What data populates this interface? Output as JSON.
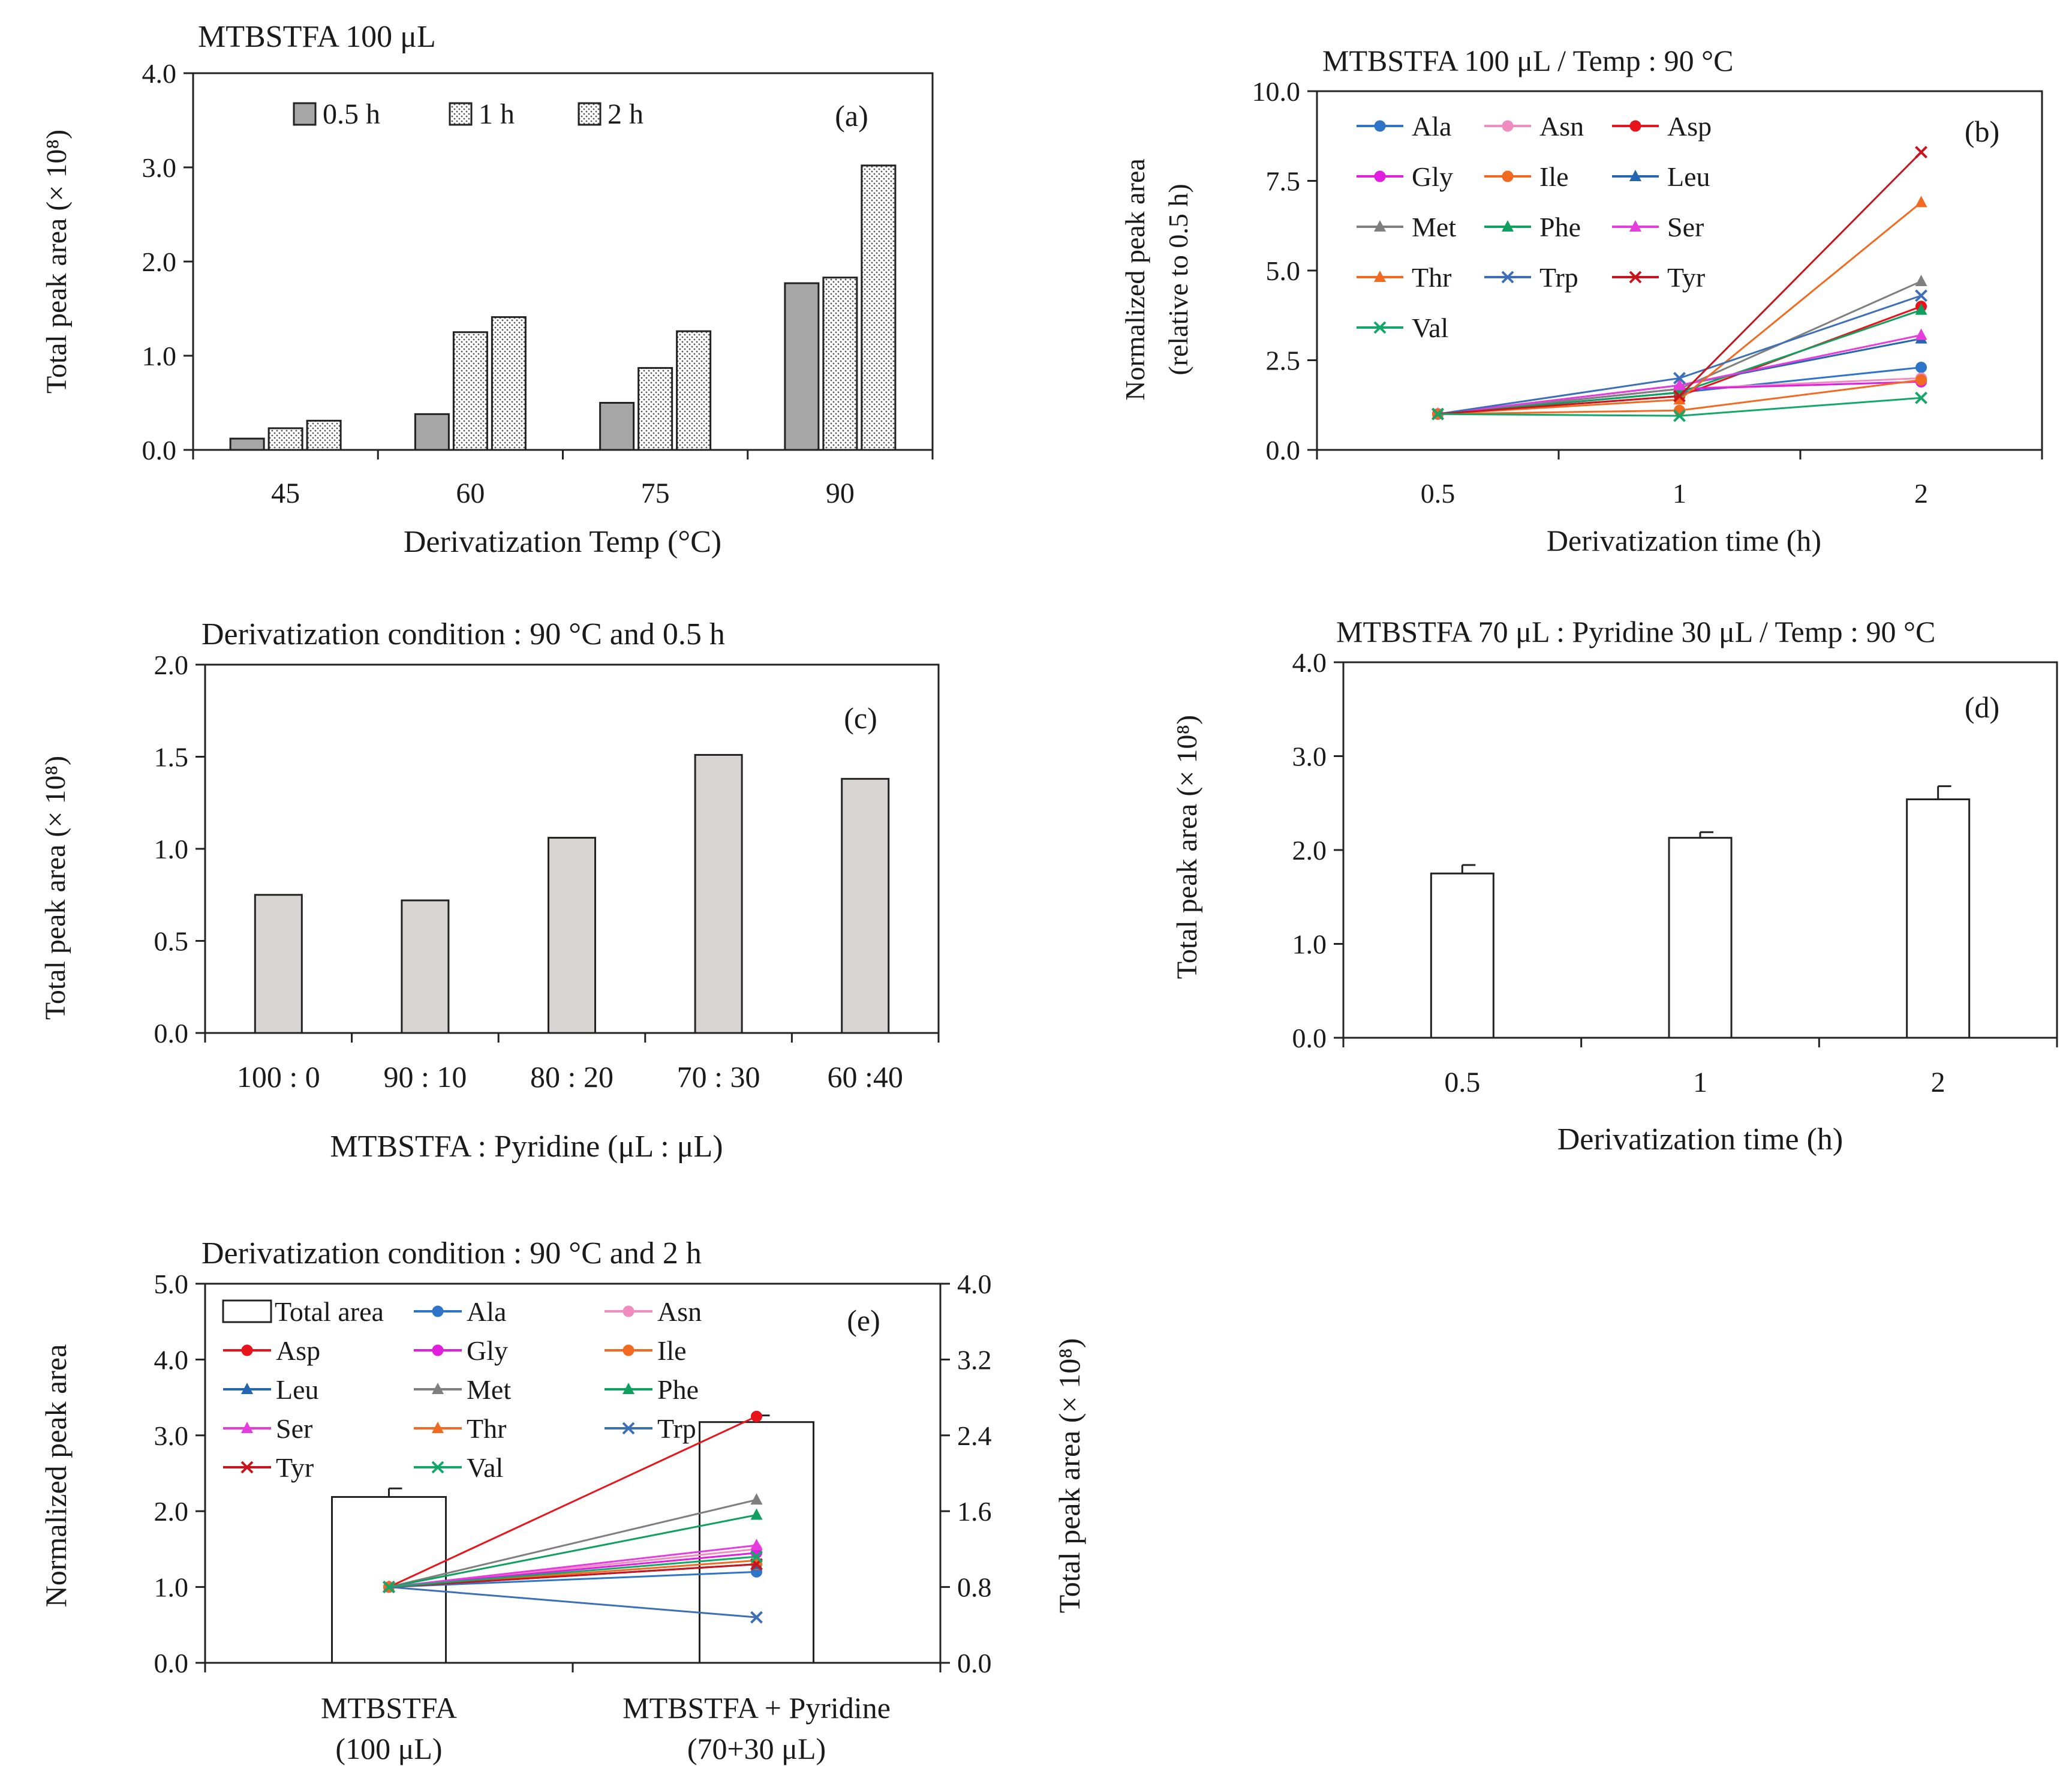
{
  "colors": {
    "gray_bar": "#a6a6a6",
    "light_bar": "#d9d4d4",
    "Ala": "#2e75c9",
    "Asn": "#f08cc0",
    "Asp": "#e8141c",
    "Gly": "#e01ee0",
    "Ile": "#f26a22",
    "Leu": "#2566b0",
    "Met": "#7f7f7f",
    "Phe": "#0fa060",
    "Ser": "#e63cdc",
    "Thr": "#f26a22",
    "Trp": "#3d6fb6",
    "Tyr": "#c8141c",
    "Val": "#13a86a"
  },
  "chart_data": [
    {
      "id": "a",
      "type": "bar",
      "panel_label": "(a)",
      "title": "MTBSTFA 100 μL",
      "xlabel": "Derivatization Temp (°C)",
      "ylabel": "Total peak area (× 10⁸)",
      "ylim": [
        0,
        4
      ],
      "yticks": [
        "0.0",
        "1.0",
        "2.0",
        "3.0",
        "4.0"
      ],
      "categories": [
        "45",
        "60",
        "75",
        "90"
      ],
      "series": [
        {
          "name": "0.5 h",
          "pattern": "solid-gray",
          "values": [
            0.12,
            0.38,
            0.5,
            1.77
          ]
        },
        {
          "name": "1 h",
          "pattern": "dotted",
          "values": [
            0.23,
            1.25,
            0.87,
            1.83
          ]
        },
        {
          "name": "2 h",
          "pattern": "dotted",
          "values": [
            0.31,
            1.41,
            1.26,
            3.02
          ]
        }
      ],
      "legend": "top-left"
    },
    {
      "id": "b",
      "type": "line",
      "panel_label": "(b)",
      "title": "MTBSTFA 100 μL / Temp : 90 °C",
      "xlabel": "Derivatization time (h)",
      "ylabel": "Normalized peak area",
      "ylabel2": "(relative to 0.5 h)",
      "ylim": [
        0,
        10
      ],
      "yticks": [
        "0.0",
        "2.5",
        "5.0",
        "7.5",
        "10.0"
      ],
      "categories": [
        "0.5",
        "1",
        "2"
      ],
      "series": [
        {
          "name": "Ala",
          "marker": "circle",
          "values": [
            1,
            1.6,
            2.3
          ]
        },
        {
          "name": "Asn",
          "marker": "circle",
          "values": [
            1,
            1.7,
            2.0
          ]
        },
        {
          "name": "Asp",
          "marker": "circle",
          "values": [
            1,
            1.5,
            4.0
          ]
        },
        {
          "name": "Gly",
          "marker": "circle",
          "values": [
            1,
            1.7,
            1.9
          ]
        },
        {
          "name": "Ile",
          "marker": "circle",
          "values": [
            1,
            1.1,
            1.95
          ]
        },
        {
          "name": "Leu",
          "marker": "triangle",
          "values": [
            1,
            1.8,
            3.1
          ]
        },
        {
          "name": "Met",
          "marker": "triangle",
          "values": [
            1,
            1.7,
            4.7
          ]
        },
        {
          "name": "Phe",
          "marker": "triangle",
          "values": [
            1,
            1.6,
            3.9
          ]
        },
        {
          "name": "Ser",
          "marker": "triangle",
          "values": [
            1,
            1.8,
            3.2
          ]
        },
        {
          "name": "Thr",
          "marker": "triangle",
          "values": [
            1,
            1.4,
            6.9
          ]
        },
        {
          "name": "Trp",
          "marker": "x",
          "values": [
            1,
            2.0,
            4.3
          ]
        },
        {
          "name": "Tyr",
          "marker": "x",
          "values": [
            1,
            1.5,
            8.3
          ]
        },
        {
          "name": "Val",
          "marker": "x",
          "values": [
            1,
            0.95,
            1.45
          ]
        }
      ],
      "legend": "top-left"
    },
    {
      "id": "c",
      "type": "bar",
      "panel_label": "(c)",
      "title": "Derivatization condition : 90 °C and 0.5 h",
      "xlabel": "MTBSTFA : Pyridine (μL : μL)",
      "ylabel": "Total peak area (× 10⁸)",
      "ylim": [
        0,
        2
      ],
      "yticks": [
        "0.0",
        "0.5",
        "1.0",
        "1.5",
        "2.0"
      ],
      "categories": [
        "100 : 0",
        "90 : 10",
        "80 : 20",
        "70 : 30",
        "60 :40"
      ],
      "values": [
        0.75,
        0.72,
        1.06,
        1.51,
        1.38
      ]
    },
    {
      "id": "d",
      "type": "bar",
      "panel_label": "(d)",
      "title": "MTBSTFA 70 μL : Pyridine 30 μL / Temp : 90 °C",
      "xlabel": "Derivatization time (h)",
      "ylabel": "Total peak area (× 10⁸)",
      "ylim": [
        0,
        4
      ],
      "yticks": [
        "0.0",
        "1.0",
        "2.0",
        "3.0",
        "4.0"
      ],
      "categories": [
        "0.5",
        "1",
        "2"
      ],
      "values": [
        1.75,
        2.13,
        2.54
      ],
      "errors": [
        0.09,
        0.06,
        0.14
      ]
    },
    {
      "id": "e",
      "type": "bar+line",
      "panel_label": "(e)",
      "title": "Derivatization condition : 90 °C and 2 h",
      "ylabel": "Normalized peak area",
      "y2label": "Total peak area (× 10⁸)",
      "ylim": [
        0,
        5
      ],
      "yticks": [
        "0.0",
        "1.0",
        "2.0",
        "3.0",
        "4.0",
        "5.0"
      ],
      "y2lim": [
        0,
        4
      ],
      "y2ticks": [
        "0.0",
        "0.8",
        "1.6",
        "2.4",
        "3.2",
        "4.0"
      ],
      "categories": [
        {
          "line1": "MTBSTFA",
          "line2": "(100 μL)"
        },
        {
          "line1": "MTBSTFA + Pyridine",
          "line2": "(70+30 μL)"
        }
      ],
      "bar_series": {
        "name": "Total area",
        "values": [
          1.75,
          2.54
        ],
        "errors": [
          0.09,
          0.07
        ]
      },
      "line_series": [
        {
          "name": "Ala",
          "marker": "circle",
          "values": [
            1,
            1.2
          ]
        },
        {
          "name": "Asn",
          "marker": "circle",
          "values": [
            1,
            1.5
          ]
        },
        {
          "name": "Asp",
          "marker": "circle",
          "values": [
            1,
            3.25
          ]
        },
        {
          "name": "Gly",
          "marker": "circle",
          "values": [
            1,
            1.45
          ]
        },
        {
          "name": "Ile",
          "marker": "circle",
          "values": [
            1,
            1.3
          ]
        },
        {
          "name": "Leu",
          "marker": "triangle",
          "values": [
            1,
            1.3
          ]
        },
        {
          "name": "Met",
          "marker": "triangle",
          "values": [
            1,
            2.15
          ]
        },
        {
          "name": "Phe",
          "marker": "triangle",
          "values": [
            1,
            1.95
          ]
        },
        {
          "name": "Ser",
          "marker": "triangle",
          "values": [
            1,
            1.55
          ]
        },
        {
          "name": "Thr",
          "marker": "triangle",
          "values": [
            1,
            1.35
          ]
        },
        {
          "name": "Trp",
          "marker": "x",
          "values": [
            1,
            0.6
          ]
        },
        {
          "name": "Tyr",
          "marker": "x",
          "values": [
            1,
            1.3
          ]
        },
        {
          "name": "Val",
          "marker": "x",
          "values": [
            1,
            1.4
          ]
        }
      ],
      "legend": "top-left"
    }
  ]
}
